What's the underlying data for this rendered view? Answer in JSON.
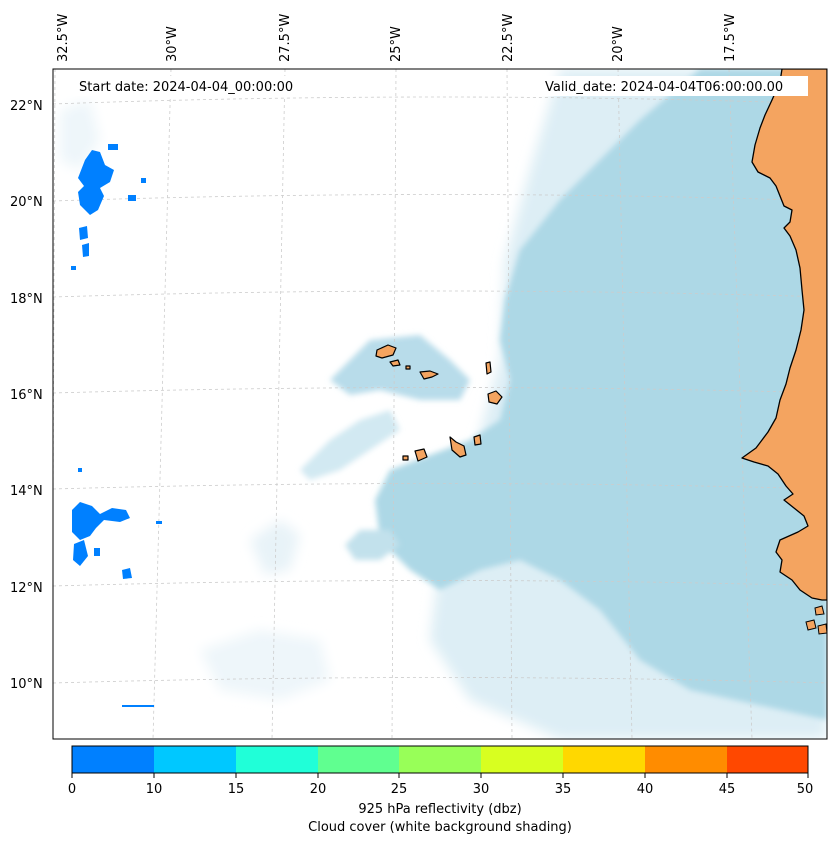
{
  "map": {
    "start_date_text": "Start date: 2024-04-04_00:00:00",
    "valid_date_text": "Valid_date: 2024-04-04T06:00:00.00",
    "lon_labels": [
      "32.5°W",
      "30°W",
      "27.5°W",
      "25°W",
      "22.5°W",
      "20°W",
      "17.5°W"
    ],
    "lat_labels": [
      "22°N",
      "20°N",
      "18°N",
      "16°N",
      "14°N",
      "12°N",
      "10°N"
    ],
    "colors": {
      "land": "#f4a460",
      "cloud": "#add8e6",
      "gridline": "#cccccc",
      "reflectivity_0_10": "#0080ff"
    }
  },
  "colorbar": {
    "ticks": [
      "0",
      "10",
      "15",
      "20",
      "25",
      "30",
      "35",
      "40",
      "45",
      "50"
    ],
    "colors": [
      "#0080ff",
      "#00c8ff",
      "#20ffd8",
      "#60ff90",
      "#98ff58",
      "#d8ff20",
      "#ffd800",
      "#ff8c00",
      "#ff4800"
    ],
    "label_line1": "925 hPa reflectivity (dbz)",
    "label_line2": "Cloud cover (white background shading)"
  }
}
